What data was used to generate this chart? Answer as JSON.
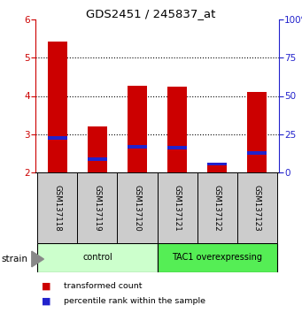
{
  "title": "GDS2451 / 245837_at",
  "samples": [
    "GSM137118",
    "GSM137119",
    "GSM137120",
    "GSM137121",
    "GSM137122",
    "GSM137123"
  ],
  "transformed_counts": [
    5.42,
    3.2,
    4.27,
    4.24,
    2.18,
    4.1
  ],
  "percentile_ranks": [
    2.9,
    2.35,
    2.68,
    2.65,
    2.22,
    2.5
  ],
  "ymin": 2,
  "ymax": 6,
  "yticks": [
    2,
    3,
    4,
    5,
    6
  ],
  "y2ticks": [
    0,
    25,
    50,
    75,
    100
  ],
  "y2labels": [
    "0",
    "25",
    "50",
    "75",
    "100%"
  ],
  "bar_color": "#cc0000",
  "percentile_color": "#2222cc",
  "bar_width": 0.5,
  "groups": [
    {
      "label": "control",
      "indices": [
        0,
        1,
        2
      ],
      "color": "#ccffcc"
    },
    {
      "label": "TAC1 overexpressing",
      "indices": [
        3,
        4,
        5
      ],
      "color": "#55ee55"
    }
  ],
  "strain_label": "strain",
  "legend_items": [
    {
      "color": "#cc0000",
      "label": "transformed count"
    },
    {
      "color": "#2222cc",
      "label": "percentile rank within the sample"
    }
  ],
  "left_color": "#cc0000",
  "right_color": "#2222cc",
  "tick_label_bg": "#cccccc",
  "grid_ticks": [
    3,
    4,
    5
  ]
}
